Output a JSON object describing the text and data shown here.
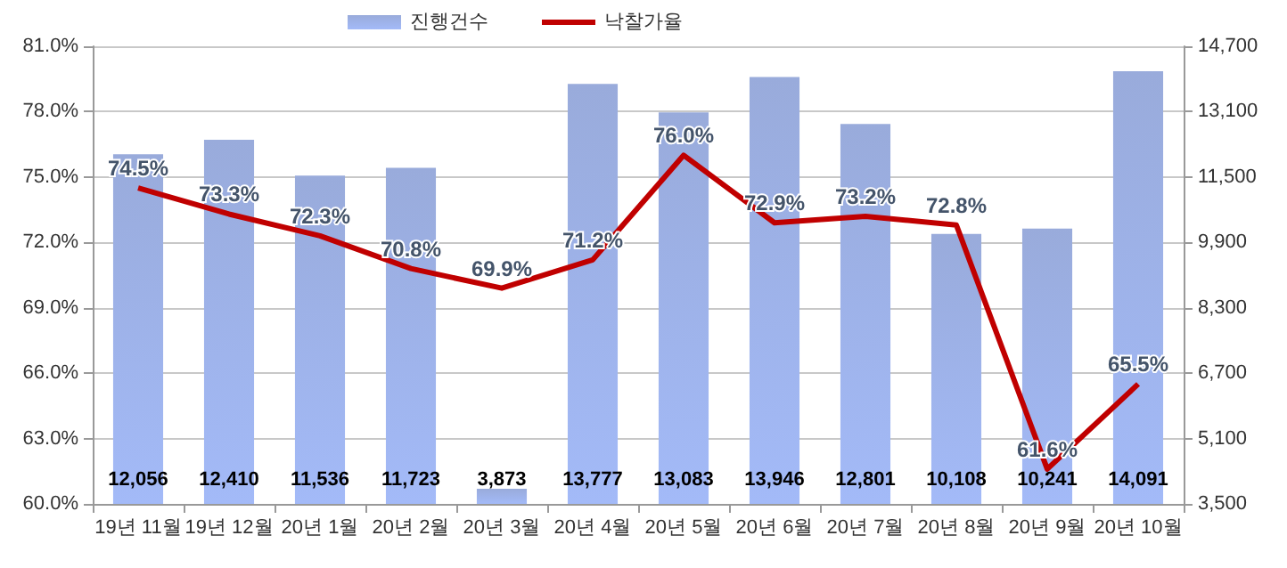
{
  "chart_data": {
    "type": "bar",
    "categories": [
      "19년 11월",
      "19년 12월",
      "20년 1월",
      "20년 2월",
      "20년 3월",
      "20년 4월",
      "20년 5월",
      "20년 6월",
      "20년 7월",
      "20년 8월",
      "20년 9월",
      "20년 10월"
    ],
    "series": [
      {
        "name": "진행건수",
        "axis": "y2",
        "color": "#8ea2d8",
        "values": [
          12056,
          12410,
          11536,
          11723,
          3873,
          13777,
          13083,
          13946,
          12801,
          10108,
          10241,
          14091
        ],
        "value_labels": [
          "12,056",
          "12,410",
          "11,536",
          "11,723",
          "3,873",
          "13,777",
          "13,083",
          "13,946",
          "12,801",
          "10,108",
          "10,241",
          "14,091"
        ]
      },
      {
        "name": "낙찰가율",
        "type": "line",
        "color": "#c00000",
        "values": [
          74.5,
          73.3,
          72.3,
          70.8,
          69.9,
          71.2,
          76.0,
          72.9,
          73.2,
          72.8,
          61.6,
          65.5
        ],
        "value_labels": [
          "74.5%",
          "73.3%",
          "72.3%",
          "70.8%",
          "69.9%",
          "71.2%",
          "76.0%",
          "72.9%",
          "73.2%",
          "72.8%",
          "61.6%",
          "65.5%"
        ]
      }
    ],
    "ylim": [
      60,
      81
    ],
    "yticks": [
      {
        "value": 60,
        "label": "60.0%"
      },
      {
        "value": 63,
        "label": "63.0%"
      },
      {
        "value": 66,
        "label": "66.0%"
      },
      {
        "value": 69,
        "label": "69.0%"
      },
      {
        "value": 72,
        "label": "72.0%"
      },
      {
        "value": 75,
        "label": "75.0%"
      },
      {
        "value": 78,
        "label": "78.0%"
      },
      {
        "value": 81,
        "label": "81.0%"
      }
    ],
    "y2lim": [
      3500,
      14700
    ],
    "y2ticks": [
      {
        "value": 3500,
        "label": "3,500"
      },
      {
        "value": 5100,
        "label": "5,100"
      },
      {
        "value": 6700,
        "label": "6,700"
      },
      {
        "value": 8300,
        "label": "8,300"
      },
      {
        "value": 9900,
        "label": "9,900"
      },
      {
        "value": 11500,
        "label": "11,500"
      },
      {
        "value": 13100,
        "label": "13,100"
      },
      {
        "value": 14700,
        "label": "14,700"
      }
    ],
    "grid": "y",
    "legend": "top",
    "marker": "none"
  }
}
